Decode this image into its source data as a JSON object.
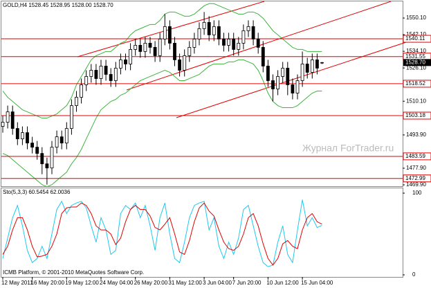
{
  "chart_data": [
    {
      "type": "candlestick",
      "title": "GOLD,H4  1528.45 1528.95 1528.00 1528.70",
      "categories": [
        "12 May 2011",
        null,
        null,
        null,
        null,
        null,
        "16 May 20:00",
        null,
        null,
        null,
        null,
        null,
        null,
        "19 May 12:00",
        null,
        null,
        null,
        null,
        null,
        null,
        "24 May 04:00",
        null,
        null,
        null,
        null,
        null,
        null,
        "26 May 20:00",
        null,
        null,
        null,
        null,
        null,
        null,
        "31 May 12:00",
        null,
        null,
        null,
        null,
        null,
        null,
        "3 Jun 04:00",
        null,
        null,
        null,
        null,
        null,
        "7 Jun 20:00",
        null,
        null,
        null,
        null,
        null,
        null,
        "10 Jun 12:00",
        null,
        null,
        null,
        null,
        null,
        null,
        "15 Jun 04:00",
        null,
        null,
        null,
        null
      ],
      "open": [
        1498,
        1500,
        1505,
        1497,
        1492,
        1495,
        1490,
        1488,
        1485,
        1480,
        1478,
        1488,
        1493,
        1490,
        1497,
        1508,
        1512,
        1518,
        1522,
        1525,
        1521,
        1527,
        1523,
        1520,
        1526,
        1530,
        1528,
        1535,
        1537,
        1534,
        1538,
        1536,
        1532,
        1540,
        1546,
        1538,
        1530,
        1525,
        1532,
        1536,
        1540,
        1545,
        1548,
        1542,
        1546,
        1540,
        1537,
        1540,
        1535,
        1538,
        1544,
        1546,
        1540,
        1536,
        1527,
        1520,
        1516,
        1522,
        1526,
        1518,
        1514,
        1520,
        1528,
        1524,
        1530,
        1528.45
      ],
      "high": [
        1503,
        1508,
        1508,
        1500,
        1498,
        1498,
        1493,
        1491,
        1488,
        1483,
        1491,
        1496,
        1496,
        1500,
        1511,
        1515,
        1521,
        1525,
        1528,
        1528,
        1530,
        1530,
        1526,
        1529,
        1533,
        1533,
        1538,
        1540,
        1540,
        1541,
        1541,
        1539,
        1543,
        1552,
        1549,
        1541,
        1533,
        1535,
        1539,
        1543,
        1548,
        1553,
        1551,
        1549,
        1549,
        1543,
        1543,
        1543,
        1541,
        1547,
        1549,
        1549,
        1543,
        1539,
        1530,
        1523,
        1525,
        1529,
        1529,
        1521,
        1523,
        1534,
        1531,
        1533,
        1533,
        1528.95
      ],
      "low": [
        1495,
        1497,
        1494,
        1489,
        1489,
        1487,
        1485,
        1482,
        1475,
        1470,
        1475,
        1485,
        1487,
        1487,
        1494,
        1505,
        1509,
        1515,
        1519,
        1518,
        1518,
        1520,
        1517,
        1517,
        1523,
        1525,
        1525,
        1532,
        1531,
        1531,
        1533,
        1529,
        1529,
        1537,
        1535,
        1527,
        1522,
        1522,
        1529,
        1533,
        1537,
        1542,
        1539,
        1539,
        1537,
        1534,
        1534,
        1532,
        1532,
        1535,
        1541,
        1537,
        1533,
        1524,
        1517,
        1510,
        1513,
        1519,
        1513,
        1511,
        1511,
        1517,
        1521,
        1521,
        1523,
        1528.0
      ],
      "close": [
        1500,
        1505,
        1497,
        1492,
        1495,
        1490,
        1488,
        1485,
        1480,
        1478,
        1488,
        1493,
        1490,
        1497,
        1508,
        1512,
        1518,
        1522,
        1525,
        1521,
        1527,
        1523,
        1520,
        1526,
        1530,
        1528,
        1535,
        1537,
        1534,
        1538,
        1536,
        1532,
        1540,
        1546,
        1538,
        1530,
        1525,
        1532,
        1536,
        1540,
        1545,
        1548,
        1542,
        1546,
        1540,
        1537,
        1540,
        1535,
        1538,
        1544,
        1546,
        1540,
        1536,
        1527,
        1520,
        1516,
        1522,
        1526,
        1518,
        1514,
        1520,
        1528,
        1524,
        1530,
        1526,
        1528.7
      ],
      "bands": [
        {
          "color": "#3cb43c",
          "values": [
            1515,
            1512,
            1510,
            1508,
            1506,
            1505,
            1504,
            1503,
            1502,
            1502,
            1503,
            1504,
            1506,
            1508,
            1512,
            1518,
            1522,
            1526,
            1530,
            1532,
            1533,
            1534,
            1534,
            1536,
            1538,
            1539,
            1542,
            1544,
            1545,
            1546,
            1547,
            1547,
            1549,
            1552,
            1553,
            1553,
            1552,
            1551,
            1551,
            1552,
            1554,
            1556,
            1557,
            1557,
            1556,
            1555,
            1554,
            1553,
            1552,
            1552,
            1553,
            1553,
            1552,
            1550,
            1547,
            1544,
            1542,
            1540,
            1538,
            1536,
            1535,
            1535,
            1534,
            1534,
            1534,
            1534
          ]
        },
        {
          "color": "#3cb43c",
          "values": [
            1485,
            1484,
            1482,
            1480,
            1478,
            1476,
            1474,
            1472,
            1470,
            1469,
            1470,
            1472,
            1474,
            1476,
            1480,
            1483,
            1487,
            1492,
            1497,
            1502,
            1506,
            1508,
            1510,
            1511,
            1513,
            1514,
            1516,
            1518,
            1520,
            1521,
            1522,
            1523,
            1524,
            1525,
            1524,
            1522,
            1520,
            1520,
            1521,
            1522,
            1523,
            1525,
            1527,
            1528,
            1528,
            1528,
            1529,
            1529,
            1530,
            1530,
            1529,
            1528,
            1525,
            1520,
            1514,
            1510,
            1508,
            1507,
            1507,
            1507,
            1508,
            1510,
            1512,
            1514,
            1515,
            1515
          ]
        }
      ],
      "ylim": [
        1468.9,
        1558.1
      ],
      "yticks": [
        {
          "value": 1550.1,
          "label": "1550.10"
        },
        {
          "value": 1542.1,
          "label": "1542.10"
        },
        {
          "value": 1534.1,
          "label": "1534.10"
        },
        {
          "value": 1526.1,
          "label": "1526.10"
        },
        {
          "value": 1510.1,
          "label": "1510.10"
        },
        {
          "value": 1493.9,
          "label": "1493.90"
        },
        {
          "value": 1477.9,
          "label": "1477.90"
        },
        {
          "value": 1469.9,
          "label": "1469.90"
        }
      ],
      "levels": [
        {
          "value": 1540.11,
          "label": "1540.11"
        },
        {
          "value": 1531.55,
          "label": "1531.55"
        },
        {
          "value": 1518.52,
          "label": "1518.52"
        },
        {
          "value": 1503.18,
          "label": "1503.18"
        },
        {
          "value": 1483.59,
          "label": "1483.59"
        },
        {
          "value": 1472.99,
          "label": "1472.99"
        }
      ],
      "level_color": "#e00000",
      "last_price": {
        "value": 1528.7,
        "label": "1528.70"
      },
      "watermark": "Журнал ForTrader.ru"
    },
    {
      "type": "line",
      "title": "Sto(5,3,3) 60.5454 62.0036",
      "series": [
        {
          "color": "#1ec8f0",
          "values": [
            20,
            45,
            70,
            85,
            60,
            30,
            15,
            20,
            35,
            20,
            50,
            80,
            90,
            75,
            85,
            88,
            90,
            82,
            60,
            40,
            70,
            55,
            25,
            30,
            75,
            85,
            80,
            88,
            70,
            85,
            60,
            30,
            70,
            88,
            50,
            20,
            15,
            40,
            70,
            85,
            88,
            90,
            55,
            70,
            35,
            20,
            40,
            25,
            45,
            80,
            85,
            60,
            35,
            15,
            10,
            12,
            40,
            60,
            25,
            15,
            55,
            92,
            60,
            70,
            58,
            60.5454
          ]
        },
        {
          "color": "#e00000",
          "values": [
            25,
            35,
            55,
            70,
            70,
            55,
            35,
            22,
            23,
            25,
            35,
            50,
            75,
            82,
            83,
            83,
            88,
            85,
            75,
            60,
            55,
            55,
            50,
            37,
            45,
            65,
            80,
            85,
            80,
            80,
            72,
            58,
            55,
            62,
            70,
            50,
            28,
            25,
            42,
            65,
            82,
            88,
            78,
            72,
            55,
            40,
            32,
            30,
            35,
            50,
            70,
            75,
            60,
            38,
            20,
            12,
            20,
            38,
            42,
            35,
            32,
            55,
            70,
            75,
            65,
            62.0036
          ]
        }
      ],
      "ylim": [
        0,
        100
      ],
      "yticks": [
        100,
        0
      ],
      "footer": "ICMB Platform, © 2001-2010 MetaQuotes Software Corp."
    }
  ]
}
